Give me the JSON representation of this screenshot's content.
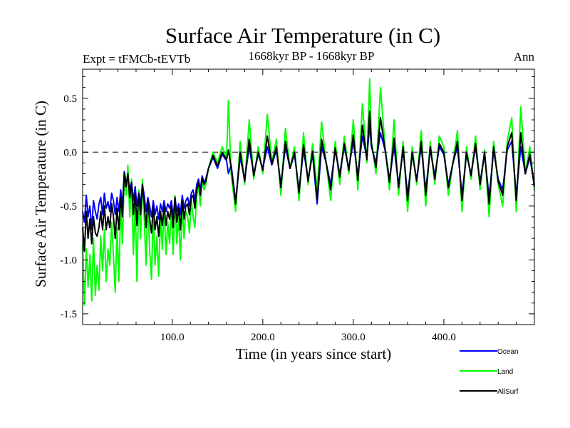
{
  "chart_data": {
    "type": "line",
    "title": "Surface Air Temperature (in C)",
    "subtitle_left": "Expt = tFMCb-tEVTb",
    "subtitle_center": "1668kyr BP - 1668kyr BP",
    "subtitle_right": "Ann",
    "xlabel": "Time (in years since start)",
    "ylabel": "Surface Air Temperature (in C)",
    "xlim": [
      1,
      500
    ],
    "ylim": [
      -1.6,
      0.77
    ],
    "xticks": [
      100,
      200,
      300,
      400
    ],
    "xtick_labels": [
      "100.0",
      "200.0",
      "300.0",
      "400.0"
    ],
    "yticks": [
      -1.5,
      -1.0,
      -0.5,
      0.0,
      0.5
    ],
    "ytick_labels": [
      "-1.5",
      "-1.0",
      "-0.5",
      "0.0",
      "0.5"
    ],
    "reference_line": 0.0,
    "colors": {
      "Ocean": "#0000ff",
      "Land": "#00ff00",
      "AllSurf": "#000000"
    },
    "series": [
      {
        "name": "Land",
        "x": [
          1,
          3,
          5,
          7,
          9,
          11,
          13,
          15,
          17,
          19,
          21,
          23,
          25,
          27,
          29,
          31,
          33,
          35,
          37,
          39,
          41,
          43,
          45,
          47,
          49,
          51,
          53,
          55,
          57,
          59,
          61,
          63,
          65,
          67,
          69,
          71,
          73,
          75,
          77,
          79,
          81,
          83,
          85,
          87,
          89,
          91,
          93,
          95,
          97,
          99,
          101,
          103,
          105,
          107,
          109,
          111,
          113,
          115,
          117,
          119,
          121,
          123,
          125,
          127,
          129,
          131,
          133,
          135,
          137,
          140,
          145,
          150,
          155,
          160,
          162,
          165,
          170,
          175,
          180,
          185,
          190,
          195,
          200,
          205,
          210,
          215,
          220,
          225,
          230,
          235,
          240,
          245,
          250,
          255,
          260,
          265,
          270,
          275,
          280,
          285,
          290,
          295,
          300,
          305,
          310,
          315,
          318,
          320,
          325,
          330,
          335,
          340,
          345,
          350,
          355,
          360,
          365,
          370,
          375,
          380,
          385,
          390,
          395,
          400,
          405,
          410,
          415,
          420,
          425,
          430,
          435,
          440,
          445,
          450,
          455,
          460,
          465,
          470,
          475,
          480,
          485,
          490,
          495,
          500
        ],
        "values": [
          -0.85,
          -1.42,
          -0.9,
          -1.25,
          -0.95,
          -1.38,
          -0.8,
          -1.33,
          -1.05,
          -1.28,
          -0.78,
          -1.1,
          -0.72,
          -1.2,
          -0.9,
          -1.05,
          -0.65,
          -0.95,
          -1.3,
          -0.7,
          -1.2,
          -0.5,
          -0.85,
          -0.2,
          -0.4,
          -0.12,
          -0.6,
          -0.25,
          -0.95,
          -0.45,
          -1.2,
          -0.35,
          -0.8,
          -0.25,
          -0.6,
          -1.05,
          -0.45,
          -0.9,
          -1.18,
          -0.55,
          -1.05,
          -0.78,
          -1.15,
          -0.6,
          -0.9,
          -0.5,
          -0.95,
          -0.65,
          -0.85,
          -0.55,
          -0.95,
          -0.4,
          -0.85,
          -0.6,
          -1.0,
          -0.5,
          -0.8,
          -0.55,
          -0.6,
          -0.75,
          -0.45,
          -0.6,
          -0.7,
          -0.4,
          -0.32,
          -0.5,
          -0.25,
          -0.35,
          -0.3,
          -0.15,
          0.0,
          -0.1,
          0.05,
          -0.05,
          0.48,
          -0.2,
          -0.55,
          0.1,
          -0.3,
          0.3,
          -0.25,
          0.05,
          -0.2,
          0.35,
          -0.1,
          0.12,
          -0.4,
          0.22,
          -0.15,
          0.05,
          -0.45,
          0.18,
          -0.3,
          0.08,
          -0.35,
          0.28,
          -0.1,
          -0.45,
          0.1,
          -0.3,
          0.15,
          -0.2,
          0.3,
          -0.35,
          0.45,
          -0.1,
          0.68,
          0.1,
          -0.2,
          0.6,
          0.05,
          -0.35,
          0.3,
          -0.4,
          0.1,
          -0.55,
          0.05,
          -0.3,
          0.2,
          -0.5,
          0.1,
          -0.3,
          0.15,
          0.05,
          -0.4,
          -0.1,
          0.2,
          -0.55,
          0.05,
          -0.25,
          0.15,
          -0.35,
          0.02,
          -0.6,
          0.1,
          -0.3,
          -0.5,
          0.1,
          0.32,
          -0.55,
          0.42,
          -0.2,
          0.05,
          -0.35
        ]
      },
      {
        "name": "Ocean",
        "x": [
          1,
          3,
          5,
          7,
          9,
          11,
          13,
          15,
          17,
          19,
          21,
          23,
          25,
          27,
          29,
          31,
          33,
          35,
          37,
          39,
          41,
          43,
          45,
          47,
          49,
          51,
          53,
          55,
          57,
          59,
          61,
          63,
          65,
          67,
          69,
          71,
          73,
          75,
          77,
          79,
          81,
          83,
          85,
          87,
          89,
          91,
          93,
          95,
          97,
          99,
          101,
          103,
          105,
          107,
          109,
          111,
          113,
          115,
          117,
          119,
          121,
          123,
          125,
          127,
          129,
          131,
          133,
          135,
          137,
          140,
          145,
          150,
          155,
          160,
          162,
          165,
          170,
          175,
          180,
          185,
          190,
          195,
          200,
          205,
          210,
          215,
          220,
          225,
          230,
          235,
          240,
          245,
          250,
          255,
          260,
          265,
          270,
          275,
          280,
          285,
          290,
          295,
          300,
          305,
          310,
          315,
          318,
          320,
          325,
          330,
          335,
          340,
          345,
          350,
          355,
          360,
          365,
          370,
          375,
          380,
          385,
          390,
          395,
          400,
          405,
          410,
          415,
          420,
          425,
          430,
          435,
          440,
          445,
          450,
          455,
          460,
          465,
          470,
          475,
          480,
          485,
          490,
          495,
          500
        ],
        "values": [
          -0.55,
          -0.65,
          -0.4,
          -0.6,
          -0.5,
          -0.72,
          -0.45,
          -0.55,
          -0.62,
          -0.48,
          -0.42,
          -0.58,
          -0.38,
          -0.52,
          -0.46,
          -0.55,
          -0.38,
          -0.45,
          -0.58,
          -0.42,
          -0.55,
          -0.35,
          -0.5,
          -0.18,
          -0.28,
          -0.22,
          -0.35,
          -0.28,
          -0.45,
          -0.32,
          -0.5,
          -0.38,
          -0.48,
          -0.3,
          -0.4,
          -0.55,
          -0.42,
          -0.5,
          -0.6,
          -0.45,
          -0.58,
          -0.5,
          -0.62,
          -0.48,
          -0.55,
          -0.45,
          -0.55,
          -0.48,
          -0.52,
          -0.45,
          -0.6,
          -0.42,
          -0.55,
          -0.48,
          -0.58,
          -0.4,
          -0.52,
          -0.45,
          -0.42,
          -0.5,
          -0.38,
          -0.35,
          -0.45,
          -0.3,
          -0.25,
          -0.35,
          -0.22,
          -0.28,
          -0.25,
          -0.15,
          -0.05,
          -0.15,
          -0.02,
          -0.08,
          -0.2,
          -0.12,
          -0.45,
          -0.05,
          -0.25,
          0.05,
          -0.2,
          -0.02,
          -0.15,
          0.05,
          -0.12,
          0.02,
          -0.3,
          0.05,
          -0.15,
          -0.02,
          -0.35,
          0.02,
          -0.25,
          -0.02,
          -0.48,
          0.05,
          -0.1,
          -0.3,
          0.02,
          -0.2,
          0.05,
          -0.15,
          0.1,
          -0.22,
          0.15,
          -0.05,
          0.25,
          0.05,
          -0.1,
          0.18,
          0.02,
          -0.25,
          0.05,
          -0.3,
          0.02,
          -0.4,
          -0.02,
          -0.25,
          0.05,
          -0.35,
          0.02,
          -0.22,
          0.05,
          -0.02,
          -0.3,
          -0.1,
          0.05,
          -0.4,
          -0.02,
          -0.2,
          0.05,
          -0.28,
          -0.02,
          -0.42,
          0.02,
          -0.25,
          -0.35,
          0.02,
          0.1,
          -0.4,
          0.05,
          -0.2,
          -0.05,
          -0.3
        ]
      },
      {
        "name": "AllSurf",
        "x": [
          1,
          3,
          5,
          7,
          9,
          11,
          13,
          15,
          17,
          19,
          21,
          23,
          25,
          27,
          29,
          31,
          33,
          35,
          37,
          39,
          41,
          43,
          45,
          47,
          49,
          51,
          53,
          55,
          57,
          59,
          61,
          63,
          65,
          67,
          69,
          71,
          73,
          75,
          77,
          79,
          81,
          83,
          85,
          87,
          89,
          91,
          93,
          95,
          97,
          99,
          101,
          103,
          105,
          107,
          109,
          111,
          113,
          115,
          117,
          119,
          121,
          123,
          125,
          127,
          129,
          131,
          133,
          135,
          137,
          140,
          145,
          150,
          155,
          160,
          162,
          165,
          170,
          175,
          180,
          185,
          190,
          195,
          200,
          205,
          210,
          215,
          220,
          225,
          230,
          235,
          240,
          245,
          250,
          255,
          260,
          265,
          270,
          275,
          280,
          285,
          290,
          295,
          300,
          305,
          310,
          315,
          318,
          320,
          325,
          330,
          335,
          340,
          345,
          350,
          355,
          360,
          365,
          370,
          375,
          380,
          385,
          390,
          395,
          400,
          405,
          410,
          415,
          420,
          425,
          430,
          435,
          440,
          445,
          450,
          455,
          460,
          465,
          470,
          475,
          480,
          485,
          490,
          495,
          500
        ],
        "values": [
          -0.7,
          -0.92,
          -0.55,
          -0.8,
          -0.62,
          -0.85,
          -0.6,
          -0.75,
          -0.78,
          -0.7,
          -0.55,
          -0.72,
          -0.5,
          -0.72,
          -0.6,
          -0.7,
          -0.48,
          -0.6,
          -0.8,
          -0.52,
          -0.72,
          -0.42,
          -0.6,
          -0.2,
          -0.32,
          -0.2,
          -0.42,
          -0.28,
          -0.58,
          -0.38,
          -0.68,
          -0.38,
          -0.58,
          -0.3,
          -0.48,
          -0.7,
          -0.45,
          -0.62,
          -0.75,
          -0.5,
          -0.72,
          -0.6,
          -0.78,
          -0.55,
          -0.68,
          -0.5,
          -0.68,
          -0.55,
          -0.62,
          -0.5,
          -0.7,
          -0.42,
          -0.65,
          -0.52,
          -0.72,
          -0.45,
          -0.62,
          -0.5,
          -0.48,
          -0.58,
          -0.42,
          -0.4,
          -0.52,
          -0.35,
          -0.28,
          -0.4,
          -0.24,
          -0.3,
          -0.27,
          -0.15,
          -0.03,
          -0.13,
          0.0,
          -0.07,
          0.02,
          -0.14,
          -0.48,
          0.0,
          -0.27,
          0.12,
          -0.22,
          0.0,
          -0.17,
          0.15,
          -0.11,
          0.05,
          -0.33,
          0.1,
          -0.15,
          0.0,
          -0.38,
          0.07,
          -0.27,
          0.01,
          -0.44,
          0.12,
          -0.1,
          -0.35,
          0.04,
          -0.23,
          0.08,
          -0.17,
          0.16,
          -0.26,
          0.25,
          -0.07,
          0.38,
          0.07,
          -0.14,
          0.32,
          0.03,
          -0.28,
          0.13,
          -0.33,
          0.05,
          -0.45,
          0.0,
          -0.27,
          0.1,
          -0.4,
          0.05,
          -0.25,
          0.08,
          0.0,
          -0.33,
          -0.1,
          0.1,
          -0.45,
          0.0,
          -0.22,
          0.08,
          -0.3,
          0.0,
          -0.48,
          0.05,
          -0.27,
          -0.4,
          0.05,
          0.18,
          -0.45,
          0.18,
          -0.2,
          -0.02,
          -0.32
        ]
      }
    ],
    "legend": [
      {
        "name": "Ocean",
        "label": "Ocean"
      },
      {
        "name": "Land",
        "label": "Land"
      },
      {
        "name": "AllSurf",
        "label": "AllSurf"
      }
    ],
    "legend_position": "below-right"
  }
}
